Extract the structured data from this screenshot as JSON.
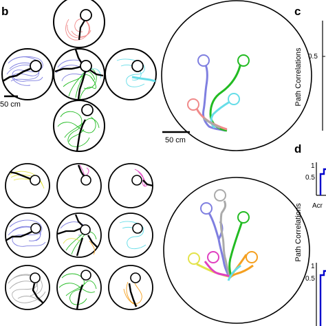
{
  "panels": {
    "b": {
      "letter": "b",
      "scale_top": "50 cm",
      "scale_right": "50 cm"
    },
    "c": {
      "letter": "c",
      "ylabel": "Path Correlations",
      "ticks": [
        "0.5"
      ]
    },
    "d": {
      "letter": "d",
      "ylabel": "Path Correlations",
      "ticks_top": [
        "1",
        "0.5"
      ],
      "ticks_bottom": [
        "1",
        "0.5"
      ],
      "xtick_fragment": "Acr"
    }
  },
  "colors": {
    "red": "#f08a8a",
    "blue": "#7f7fe0",
    "green": "#22bb22",
    "cyan": "#66dde8",
    "gray": "#aaaaaa",
    "yellow": "#e3e34a",
    "magenta": "#e040c0",
    "orange": "#f5a020",
    "dark_blue": "#0000cc",
    "black": "#000000"
  }
}
